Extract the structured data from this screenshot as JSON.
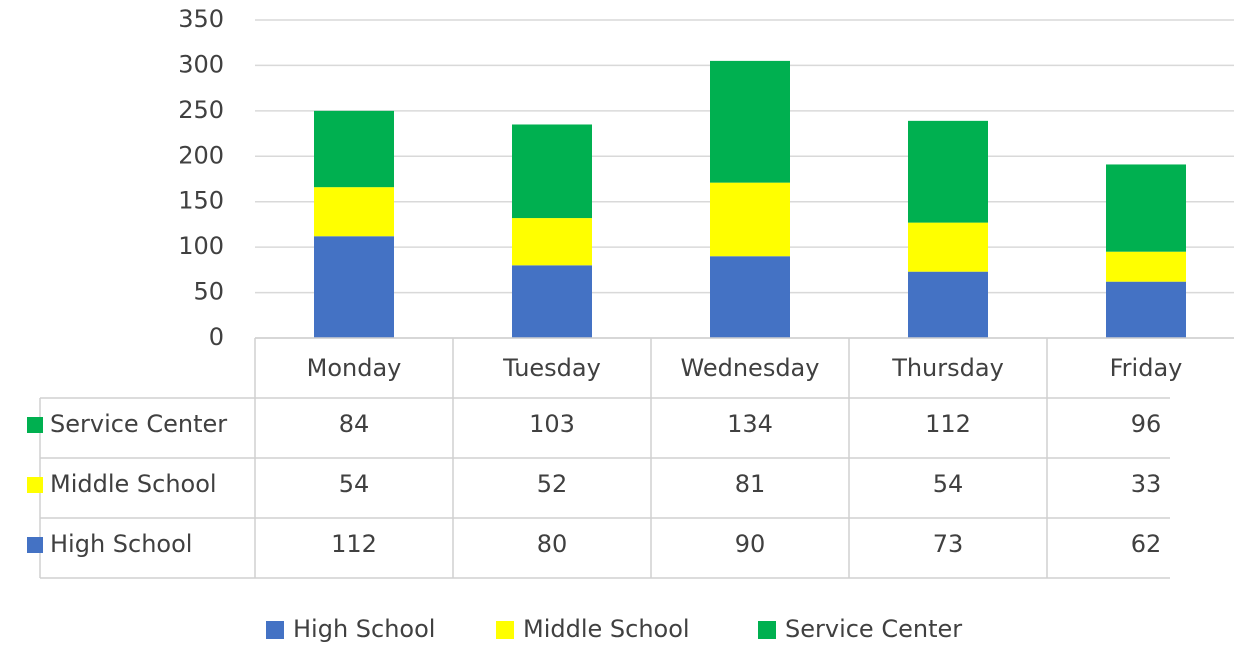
{
  "chart_data": {
    "type": "bar",
    "stacked": true,
    "data_table": true,
    "grid": true,
    "legend": "bottom",
    "categories": [
      "Monday",
      "Tuesday",
      "Wednesday",
      "Thursday",
      "Friday"
    ],
    "series": [
      {
        "name": "High School",
        "color": "#4472c4",
        "values": [
          112,
          80,
          90,
          73,
          62
        ]
      },
      {
        "name": "Middle School",
        "color": "#ffff00",
        "values": [
          54,
          52,
          81,
          54,
          33
        ]
      },
      {
        "name": "Service Center",
        "color": "#00b050",
        "values": [
          84,
          103,
          134,
          112,
          96
        ]
      }
    ],
    "ylim": [
      0,
      350
    ],
    "yticks": [
      0,
      50,
      100,
      150,
      200,
      250,
      300,
      350
    ]
  }
}
